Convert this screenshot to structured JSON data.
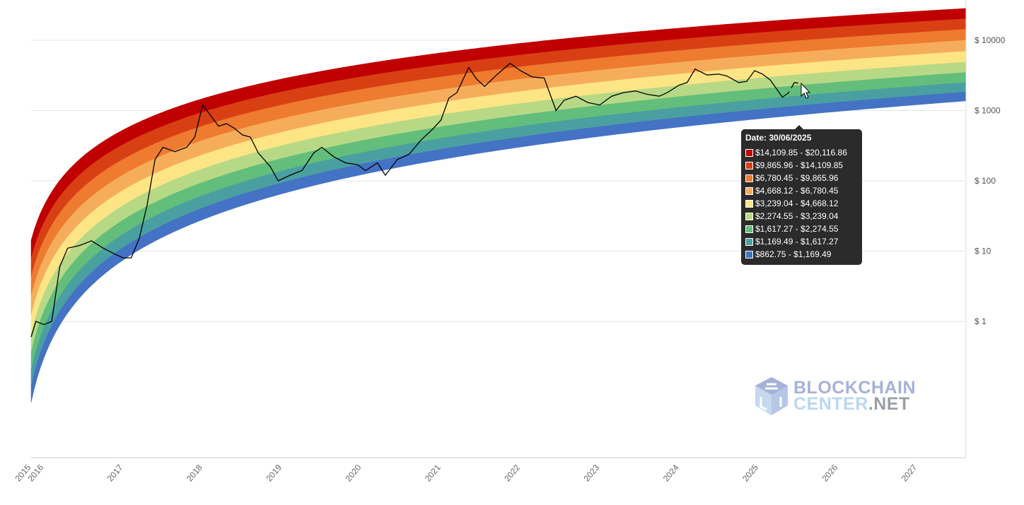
{
  "chart_data": {
    "type": "area",
    "title": "",
    "xlabel": "",
    "ylabel": "",
    "y_scale": "log",
    "ylim": [
      0.035,
      40000
    ],
    "xlim": [
      2015.84,
      2027.61
    ],
    "grid": true,
    "y_ticks": [
      {
        "value": 10000,
        "label": "$ 10000"
      },
      {
        "value": 1000,
        "label": "$ 1000"
      },
      {
        "value": 100,
        "label": "$ 100"
      },
      {
        "value": 10,
        "label": "$ 10"
      },
      {
        "value": 1,
        "label": "$ 1"
      }
    ],
    "x_ticks": [
      "2015",
      "2016",
      "2017",
      "2018",
      "2019",
      "2020",
      "2021",
      "2022",
      "2023",
      "2024",
      "2025",
      "2026",
      "2027"
    ],
    "rainbow_bounds": {
      "dates": [
        2015.84,
        2018.0,
        2025.5,
        2027.61
      ],
      "lower": [
        0.07,
        28,
        862.75,
        1370
      ],
      "upper": [
        14.3,
        1480,
        20116.86,
        28400
      ]
    },
    "bands": [
      {
        "color": "#c00000",
        "range": "$14,109.85 - $20,116.86",
        "low": 14109.85,
        "high": 20116.86
      },
      {
        "color": "#d84014",
        "range": "$9,865.96 - $14,109.85",
        "low": 9865.96,
        "high": 14109.85
      },
      {
        "color": "#ee7b2f",
        "range": "$6,780.45 - $9,865.96",
        "low": 6780.45,
        "high": 9865.96
      },
      {
        "color": "#f6ad5b",
        "range": "$4,668.12 - $6,780.45",
        "low": 4668.12,
        "high": 6780.45
      },
      {
        "color": "#fde585",
        "range": "$3,239.04 - $4,668.12",
        "low": 3239.04,
        "high": 4668.12
      },
      {
        "color": "#b7d986",
        "range": "$2,274.55 - $3,239.04",
        "low": 2274.55,
        "high": 3239.04
      },
      {
        "color": "#63be7b",
        "range": "$1,617.27 - $2,274.55",
        "low": 1617.27,
        "high": 2274.55
      },
      {
        "color": "#4aa0a0",
        "range": "$1,169.49 - $1,617.27",
        "low": 1169.49,
        "high": 1617.27
      },
      {
        "color": "#4472c4",
        "range": "$862.75 - $1,169.49",
        "low": 862.75,
        "high": 1169.49
      }
    ],
    "price": {
      "color": "#000000",
      "x": [
        2015.84,
        2015.9,
        2016.0,
        2016.1,
        2016.2,
        2016.3,
        2016.45,
        2016.6,
        2016.75,
        2016.9,
        2017.0,
        2017.1,
        2017.2,
        2017.3,
        2017.4,
        2017.5,
        2017.65,
        2017.8,
        2017.9,
        2018.0,
        2018.1,
        2018.2,
        2018.3,
        2018.4,
        2018.5,
        2018.6,
        2018.7,
        2018.85,
        2018.95,
        2019.1,
        2019.25,
        2019.4,
        2019.5,
        2019.65,
        2019.8,
        2019.95,
        2020.05,
        2020.2,
        2020.3,
        2020.45,
        2020.6,
        2020.75,
        2020.9,
        2021.0,
        2021.1,
        2021.2,
        2021.35,
        2021.45,
        2021.55,
        2021.7,
        2021.87,
        2022.0,
        2022.15,
        2022.3,
        2022.45,
        2022.55,
        2022.7,
        2022.85,
        2023.0,
        2023.15,
        2023.3,
        2023.45,
        2023.6,
        2023.75,
        2023.85,
        2024.0,
        2024.1,
        2024.2,
        2024.35,
        2024.5,
        2024.6,
        2024.75,
        2024.85,
        2024.95,
        2025.05,
        2025.15,
        2025.3,
        2025.38,
        2025.45,
        2025.5
      ],
      "y": [
        0.6,
        1.0,
        0.9,
        1.0,
        6,
        11,
        12,
        14,
        11,
        9,
        8,
        8,
        15,
        45,
        200,
        300,
        260,
        300,
        420,
        1200,
        850,
        600,
        650,
        560,
        450,
        420,
        250,
        160,
        100,
        120,
        140,
        250,
        300,
        220,
        180,
        170,
        140,
        180,
        120,
        200,
        240,
        380,
        550,
        730,
        1500,
        1800,
        4100,
        2800,
        2200,
        3200,
        4700,
        3700,
        3000,
        2900,
        1000,
        1400,
        1600,
        1300,
        1200,
        1600,
        1800,
        1900,
        1700,
        1600,
        1800,
        2300,
        2500,
        3900,
        3200,
        3300,
        3100,
        2500,
        2600,
        3700,
        3300,
        2700,
        1550,
        1800,
        2500,
        2450
      ]
    },
    "tooltip": {
      "date_label": "Date: 30/06/2025",
      "date": 2025.5
    }
  },
  "logo": {
    "line1": "BLOCKCHAIN",
    "line2a": "CENTER",
    "line2b": ".NET"
  }
}
